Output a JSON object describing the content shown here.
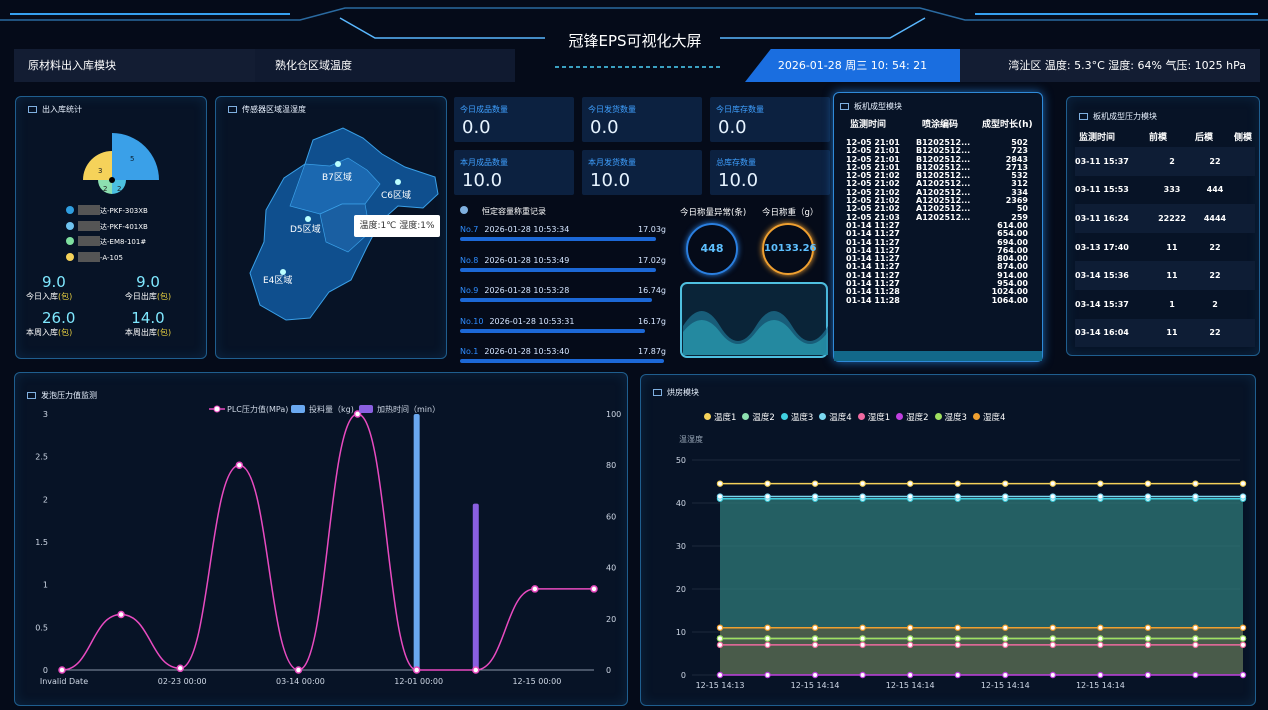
{
  "header": {
    "title": "冠锋EPS可视化大屏",
    "nav_left": "原材料出入库模块",
    "nav_mid": "熟化仓区域温度",
    "datetime": "2026-01-28 周三 10: 54: 21",
    "weather": "湾沚区 温度: 5.3°C 湿度: 64% 气压: 1025 hPa"
  },
  "inout": {
    "title": "出入库统计",
    "pie": [
      {
        "value": 5,
        "color": "#3aa0e8"
      },
      {
        "value": 3,
        "color": "#f5d25a"
      },
      {
        "value": 2,
        "color": "#8de0b0"
      },
      {
        "value": 2,
        "color": "#4bc0e0"
      }
    ],
    "legend": [
      {
        "label": "达-PKF-303XB",
        "color": "#2f9ee0"
      },
      {
        "label": "达-PKF-401XB",
        "color": "#6fc3f0"
      },
      {
        "label": "达-EM8-101#",
        "color": "#7fe0a0"
      },
      {
        "label": "-A-105",
        "color": "#f5d25a"
      }
    ],
    "stats": [
      {
        "value": "9.0",
        "label": "今日入库",
        "unit": "(包)"
      },
      {
        "value": "9.0",
        "label": "今日出库",
        "unit": "(包)"
      },
      {
        "value": "26.0",
        "label": "本周入库",
        "unit": "(包)"
      },
      {
        "value": "14.0",
        "label": "本周出库",
        "unit": "(包)"
      }
    ]
  },
  "map": {
    "title": "传感器区域温湿度",
    "regions": [
      "B7区域",
      "C6区域",
      "D5区域",
      "E4区域"
    ],
    "tooltip": "温度:1℃ 湿度:1%"
  },
  "stats": [
    {
      "label": "今日成品数量",
      "value": "0.0"
    },
    {
      "label": "今日发货数量",
      "value": "0.0"
    },
    {
      "label": "今日库存数量",
      "value": "0.0"
    },
    {
      "label": "本月成品数量",
      "value": "10.0"
    },
    {
      "label": "本月发货数量",
      "value": "10.0"
    },
    {
      "label": "总库存数量",
      "value": "10.0"
    }
  ],
  "records": {
    "title": "恒定容量称重记录",
    "items": [
      {
        "no": "No.7",
        "time": "2026-01-28 10:53:34",
        "weight": "17.03g",
        "fill": 0.95
      },
      {
        "no": "No.8",
        "time": "2026-01-28 10:53:49",
        "weight": "17.02g",
        "fill": 0.95
      },
      {
        "no": "No.9",
        "time": "2026-01-28 10:53:28",
        "weight": "16.74g",
        "fill": 0.93
      },
      {
        "no": "No.10",
        "time": "2026-01-28 10:53:31",
        "weight": "16.17g",
        "fill": 0.9
      },
      {
        "no": "No.1",
        "time": "2026-01-28 10:53:40",
        "weight": "17.87g",
        "fill": 0.99
      }
    ]
  },
  "gauges": {
    "abnormal_label": "今日称量异常(条)",
    "abnormal_value": "448",
    "weight_label": "今日称重（g）",
    "weight_value": "10133.26"
  },
  "molding": {
    "title": "板机成型模块",
    "headers": [
      "监测时间",
      "喷涂编码",
      "成型时长(h)"
    ],
    "rows": [
      [
        "12-05 21:01",
        "B1202512...",
        "502"
      ],
      [
        "12-05 21:01",
        "B1202512...",
        "723"
      ],
      [
        "12-05 21:01",
        "B1202512...",
        "2843"
      ],
      [
        "12-05 21:01",
        "B1202512...",
        "2713"
      ],
      [
        "12-05 21:02",
        "B1202512...",
        "532"
      ],
      [
        "12-05 21:02",
        "A1202512...",
        "312"
      ],
      [
        "12-05 21:02",
        "A1202512...",
        "334"
      ],
      [
        "12-05 21:02",
        "A1202512...",
        "2369"
      ],
      [
        "12-05 21:02",
        "A1202512...",
        "50"
      ],
      [
        "12-05 21:03",
        "A1202512...",
        "259"
      ],
      [
        "01-14 11:27",
        "",
        "614.00"
      ],
      [
        "01-14 11:27",
        "",
        "654.00"
      ],
      [
        "01-14 11:27",
        "",
        "694.00"
      ],
      [
        "01-14 11:27",
        "",
        "764.00"
      ],
      [
        "01-14 11:27",
        "",
        "804.00"
      ],
      [
        "01-14 11:27",
        "",
        "874.00"
      ],
      [
        "01-14 11:27",
        "",
        "914.00"
      ],
      [
        "01-14 11:27",
        "",
        "954.00"
      ],
      [
        "01-14 11:28",
        "",
        "1024.00"
      ],
      [
        "01-14 11:28",
        "",
        "1064.00"
      ]
    ]
  },
  "pressure": {
    "title": "板机成型压力模块",
    "headers": [
      "监测时间",
      "前模",
      "后模",
      "侧模"
    ],
    "rows": [
      [
        "03-11 15:37",
        "2",
        "22",
        ""
      ],
      [
        "03-11 15:53",
        "333",
        "444",
        ""
      ],
      [
        "03-11 16:24",
        "22222",
        "4444",
        ""
      ],
      [
        "03-13 17:40",
        "11",
        "22",
        ""
      ],
      [
        "03-14 15:36",
        "11",
        "22",
        ""
      ],
      [
        "03-14 15:37",
        "1",
        "2",
        ""
      ],
      [
        "03-14 16:04",
        "11",
        "22",
        ""
      ]
    ]
  },
  "chart_data": [
    {
      "type": "line",
      "title": "发泡压力值监测",
      "categories": [
        "Invalid Date",
        "",
        "02-23 00:00",
        "",
        "03-14 00:00",
        "",
        "12-01 00:00",
        "",
        "12-15 00:00",
        ""
      ],
      "series": [
        {
          "name": "PLC压力值(MPa)",
          "type": "line",
          "axis": "left",
          "values": [
            0,
            0.65,
            0.02,
            2.4,
            0,
            3,
            0,
            0,
            0.95,
            0.95
          ]
        },
        {
          "name": "投料量（kg)",
          "type": "bar",
          "axis": "right",
          "values": [
            0,
            0,
            0,
            0,
            0,
            0,
            100,
            0,
            0,
            0
          ]
        },
        {
          "name": "加热时间（min）",
          "type": "bar",
          "axis": "right",
          "values": [
            0,
            0,
            0,
            0,
            0,
            0,
            0,
            65,
            0,
            0
          ]
        }
      ],
      "yticks_left": [
        "0",
        "0.5",
        "1",
        "1.5",
        "2",
        "2.5",
        "3"
      ],
      "ylim_left": [
        0,
        3
      ],
      "yticks_right": [
        "0",
        "20",
        "40",
        "60",
        "80",
        "100"
      ],
      "ylim_right": [
        0,
        100
      ],
      "colors": {
        "line": "#e84bc0",
        "bar1": "#6aa8f0",
        "bar2": "#8a5fe0"
      }
    },
    {
      "type": "area",
      "title": "烘房模块",
      "ylabel": "温湿度",
      "x": [
        "12-15 14:13",
        "",
        "12-15 14:14",
        "",
        "12-15 14:14",
        "",
        "12-15 14:14",
        "",
        "12-15 14:14",
        "",
        "12-15 14:14",
        ""
      ],
      "xtick_labels": [
        "12-15 14:13",
        "12-15 14:14",
        "12-15 14:14",
        "12-15 14:14",
        "12-15 14:14"
      ],
      "yticks": [
        "0",
        "10",
        "20",
        "30",
        "40",
        "50"
      ],
      "ylim": [
        0,
        50
      ],
      "series": [
        {
          "name": "温度1",
          "color": "#f5d25a",
          "value": 44.5
        },
        {
          "name": "温度2",
          "color": "#8de0b0",
          "value": 8.5
        },
        {
          "name": "温度3",
          "color": "#40d0e0",
          "value": 41
        },
        {
          "name": "温度4",
          "color": "#7ad8f0",
          "value": 41.5
        },
        {
          "name": "湿度1",
          "color": "#f06aa0",
          "value": 7
        },
        {
          "name": "湿度2",
          "color": "#c040e0",
          "value": 0
        },
        {
          "name": "湿度3",
          "color": "#a0e060",
          "value": 8.5
        },
        {
          "name": "湿度4",
          "color": "#f0a030",
          "value": 11
        }
      ]
    }
  ]
}
